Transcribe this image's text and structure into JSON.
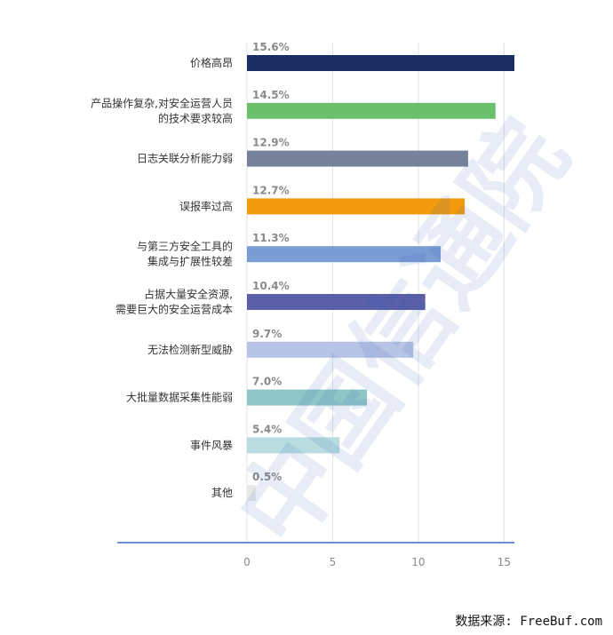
{
  "chart_data": {
    "type": "bar",
    "orientation": "horizontal",
    "categories": [
      [
        "价格高昂"
      ],
      [
        "产品操作复杂,对安全运营人员",
        "的技术要求较高"
      ],
      [
        "日志关联分析能力弱"
      ],
      [
        "误报率过高"
      ],
      [
        "与第三方安全工具的",
        "集成与扩展性较差"
      ],
      [
        "占据大量安全资源,",
        "需要巨大的安全运营成本"
      ],
      [
        "无法检测新型威胁"
      ],
      [
        "大批量数据采集性能弱"
      ],
      [
        "事件风暴"
      ],
      [
        "其他"
      ]
    ],
    "values": [
      15.6,
      14.5,
      12.9,
      12.7,
      11.3,
      10.4,
      9.7,
      7.0,
      5.4,
      0.5
    ],
    "value_labels": [
      "15.6%",
      "14.5%",
      "12.9%",
      "12.7%",
      "11.3%",
      "10.4%",
      "9.7%",
      "7.0%",
      "5.4%",
      "0.5%"
    ],
    "colors": [
      "#1c2d63",
      "#6cc06b",
      "#76819a",
      "#f39a0c",
      "#7b9dd6",
      "#5a5fa8",
      "#b8c4e6",
      "#8ec6c8",
      "#b8dce0",
      "#e8e8e8"
    ],
    "xlim": [
      0,
      15.6
    ],
    "xticks": [
      0,
      5,
      10,
      15
    ],
    "grid": true,
    "title": "",
    "xlabel": "",
    "ylabel": ""
  },
  "watermark": "中国信通院",
  "source": "数据来源: FreeBuf.com"
}
